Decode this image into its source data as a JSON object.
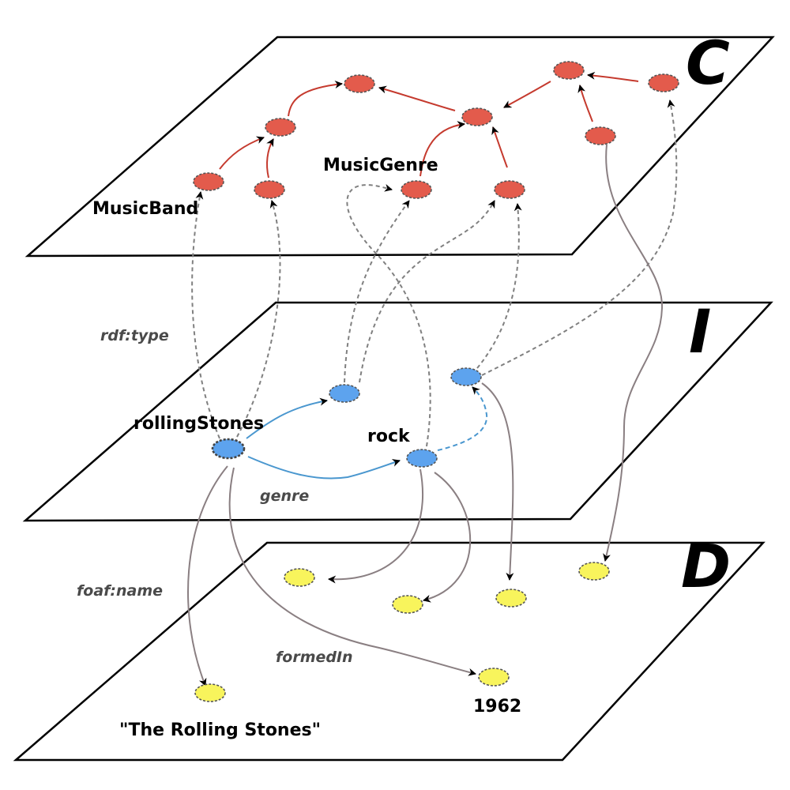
{
  "layers": {
    "classes": {
      "letter": "C"
    },
    "instances": {
      "letter": "I"
    },
    "data": {
      "letter": "D"
    }
  },
  "labels": {
    "music_band": "MusicBand",
    "music_genre": "MusicGenre",
    "rolling_stones": "rollingStones",
    "rock": "rock",
    "the_rolling_stones": "\"The Rolling Stones\"",
    "year": "1962"
  },
  "edge_labels": {
    "rdf_type": "rdf:type",
    "genre": "genre",
    "foaf_name": "foaf:name",
    "formed_in": "formedIn"
  },
  "colors": {
    "class_node": "#e35b4c",
    "instance_node": "#5da3ee",
    "literal_node": "#f8f45c",
    "class_edge": "#c53a2e",
    "instance_edge": "#4a97cf",
    "data_edge": "#8a7f82",
    "type_edge": "#808080"
  }
}
